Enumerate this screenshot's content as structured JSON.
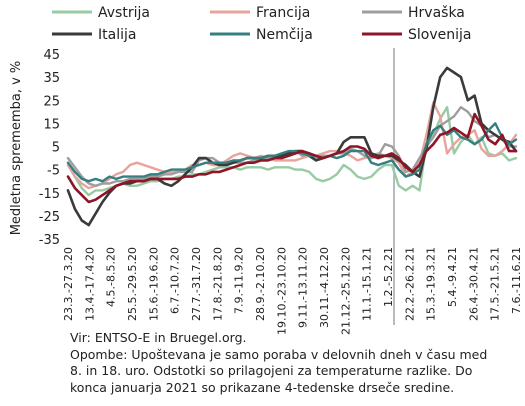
{
  "chart_data": {
    "type": "line",
    "ylabel": "Medletna sprememba, v %",
    "ylim": [
      -35,
      45
    ],
    "yticks": [
      45,
      35,
      25,
      15,
      5,
      -5,
      -15,
      -25,
      -35
    ],
    "grid": false,
    "legend_position": "top",
    "x_tick_labels": [
      "23.3.-27.3.20",
      "13.4.-17.4.20",
      "4.5.-8.5.20",
      "25.5.-29.5.20",
      "15.6.-19.6.20",
      "6.7.-10.7.20",
      "27.7.-31.7.20",
      "17.8.-21.8.20",
      "7.9.-11.9.20",
      "28.9.-2.10.20",
      "19.10.-23.10.20",
      "9.11.-13.11.20",
      "30.11.-4.12.20",
      "21.12.-25.12.20",
      "11.1.-15.1.21",
      "1.2.-5.2.21",
      "22.2.-26.2.21",
      "15.3.-19.3.21",
      "5.4.-9.4.21",
      "26.4.-30.4.21",
      "17.5.-21.5.21",
      "7.6.-11.6.21"
    ],
    "vertical_marker_after_label": "1.2.-5.2.21",
    "series": [
      {
        "name": "Avstrija",
        "color": "#98cba4",
        "width": 2.4,
        "values": [
          -3,
          -8,
          -13,
          -16,
          -14,
          -14,
          -13,
          -12,
          -11,
          -12,
          -12,
          -11,
          -10,
          -10,
          -9,
          -9,
          -8,
          -8,
          -7,
          -7,
          -6,
          -5,
          -4,
          -4,
          -4,
          -5,
          -4,
          -4,
          -4,
          -5,
          -4,
          -4,
          -4,
          -5,
          -5,
          -6,
          -9,
          -10,
          -9,
          -7,
          -3,
          -5,
          -8,
          -9,
          -8,
          -5,
          -3,
          -3,
          -12,
          -14,
          -12,
          -14,
          6,
          10,
          17,
          22,
          2,
          7,
          10,
          6,
          9,
          2,
          1,
          2,
          -1,
          0
        ]
      },
      {
        "name": "Francija",
        "color": "#e8a49c",
        "width": 2.4,
        "values": [
          -3,
          -8,
          -11,
          -13,
          -12,
          -11,
          -9,
          -7,
          -6,
          -3,
          -2,
          -3,
          -4,
          -5,
          -6,
          -6,
          -6,
          -5,
          -3,
          -3,
          -2,
          -3,
          -3,
          -1,
          1,
          2,
          1,
          0,
          1,
          0,
          -1,
          -1,
          -1,
          -1,
          0,
          1,
          1,
          2,
          3,
          3,
          2,
          1,
          -1,
          0,
          1,
          2,
          1,
          0,
          -2,
          -8,
          -6,
          -2,
          10,
          24,
          18,
          2,
          6,
          9,
          10,
          12,
          4,
          1,
          1,
          3,
          6,
          10
        ]
      },
      {
        "name": "Hrvaška",
        "color": "#9e9e9e",
        "width": 2.4,
        "values": [
          0,
          -4,
          -8,
          -11,
          -12,
          -11,
          -11,
          -10,
          -10,
          -9,
          -9,
          -9,
          -8,
          -8,
          -7,
          -7,
          -6,
          -6,
          -6,
          -1,
          0,
          0,
          -2,
          -3,
          -2,
          -2,
          -2,
          -1,
          -1,
          0,
          0,
          1,
          2,
          3,
          1,
          2,
          0,
          1,
          1,
          2,
          2,
          4,
          3,
          1,
          0,
          1,
          6,
          5,
          1,
          -6,
          -5,
          0,
          5,
          9,
          14,
          16,
          18,
          22,
          20,
          16,
          14,
          9,
          10,
          8,
          5,
          5
        ]
      },
      {
        "name": "Italija",
        "color": "#3a3a3a",
        "width": 2.6,
        "values": [
          -14,
          -22,
          -27,
          -29,
          -24,
          -19,
          -15,
          -12,
          -11,
          -11,
          -10,
          -10,
          -9,
          -9,
          -11,
          -12,
          -10,
          -7,
          -4,
          0,
          0,
          -2,
          -3,
          -3,
          -2,
          -1,
          0,
          0,
          0,
          1,
          1,
          1,
          2,
          3,
          3,
          1,
          -1,
          0,
          1,
          2,
          7,
          9,
          9,
          9,
          2,
          1,
          1,
          1,
          -1,
          -3,
          -6,
          -8,
          4,
          22,
          35,
          39,
          37,
          35,
          25,
          27,
          15,
          12,
          10,
          8,
          7,
          3
        ]
      },
      {
        "name": "Nemčija",
        "color": "#347f80",
        "width": 2.4,
        "values": [
          -2,
          -6,
          -9,
          -10,
          -9,
          -10,
          -8,
          -9,
          -8,
          -8,
          -8,
          -8,
          -7,
          -7,
          -6,
          -5,
          -5,
          -5,
          -4,
          -3,
          -2,
          -2,
          -2,
          -2,
          -1,
          -1,
          0,
          0,
          0,
          1,
          1,
          2,
          3,
          3,
          2,
          1,
          1,
          0,
          1,
          0,
          1,
          3,
          3,
          3,
          -2,
          -3,
          -2,
          -1,
          -5,
          -8,
          -7,
          -5,
          6,
          12,
          14,
          10,
          12,
          9,
          8,
          6,
          8,
          12,
          15,
          9,
          6,
          8
        ]
      },
      {
        "name": "Slovenija",
        "color": "#8e1526",
        "width": 2.6,
        "values": [
          -8,
          -13,
          -16,
          -19,
          -18,
          -16,
          -14,
          -12,
          -11,
          -10,
          -10,
          -10,
          -9,
          -9,
          -9,
          -9,
          -9,
          -8,
          -8,
          -7,
          -7,
          -6,
          -6,
          -5,
          -4,
          -3,
          -2,
          -2,
          -1,
          -1,
          0,
          0,
          1,
          2,
          3,
          2,
          1,
          0,
          1,
          2,
          3,
          5,
          5,
          4,
          1,
          0,
          1,
          2,
          0,
          -4,
          -6,
          -3,
          3,
          6,
          10,
          11,
          13,
          11,
          9,
          19,
          14,
          8,
          6,
          10,
          3,
          3
        ]
      }
    ]
  },
  "footnote": {
    "source": "Vir: ENTSO-E in Bruegel.org.",
    "note_lines": [
      "Opombe: Upoštevana je samo poraba v delovnih dneh v času med",
      "8. in 18. uro. Odstotki so prilagojeni za temperaturne razlike. Do",
      "konca januarja 2021 so prikazane 4-tedenske drseče sredine."
    ]
  }
}
